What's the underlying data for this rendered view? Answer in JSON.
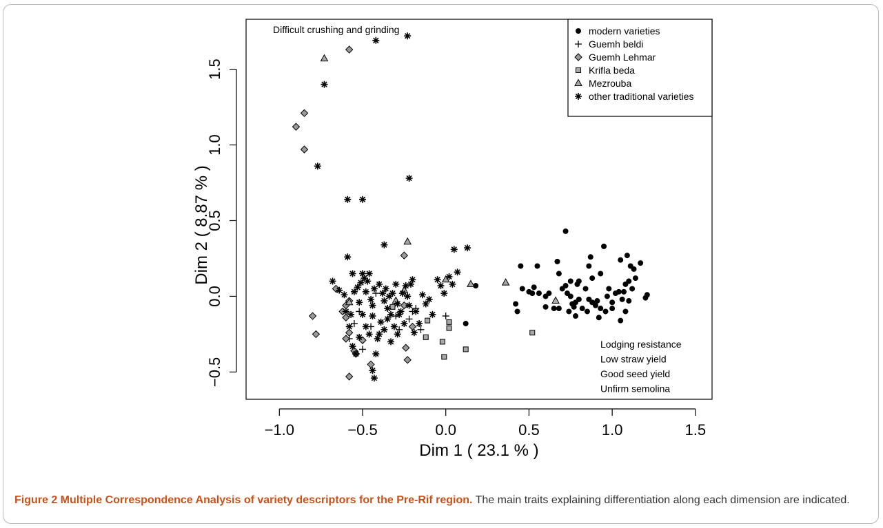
{
  "caption": {
    "label": "Figure 2 Multiple Correspondence Analysis of variety descriptors for the Pre-Rif region.",
    "text": "The main traits explaining differentiation along each dimension are indicated."
  },
  "chart_data": {
    "type": "scatter",
    "xlabel": "Dim 1  ( 23.1 % )",
    "ylabel": "Dim 2  ( 8.87 % )",
    "xlim": [
      -1.2,
      1.6
    ],
    "ylim": [
      -0.68,
      1.83
    ],
    "xticks": [
      -1.0,
      -0.5,
      0.0,
      0.5,
      1.0,
      1.5
    ],
    "yticks": [
      -0.5,
      0.0,
      0.5,
      1.0,
      1.5
    ],
    "xtick_labels": [
      "−1.0",
      "−0.5",
      "0.0",
      "0.5",
      "1.0",
      "1.5"
    ],
    "ytick_labels": [
      "−0.5",
      "0.0",
      "0.5",
      "1.0",
      "1.5"
    ],
    "grid": false,
    "legend_position": "top-right",
    "annotations": [
      {
        "lines": [
          "Difficult crushing and grinding"
        ],
        "position": "top-left"
      },
      {
        "lines": [
          "Lodging resistance",
          "Low straw yield",
          "Good seed yield",
          "Unfirm semolina"
        ],
        "position": "bottom-right"
      }
    ],
    "series": [
      {
        "name": "modern varieties",
        "marker": "filled-circle",
        "color": "#000000",
        "points": [
          [
            0.18,
            0.07
          ],
          [
            0.12,
            -0.18
          ],
          [
            0.42,
            -0.05
          ],
          [
            0.43,
            -0.1
          ],
          [
            0.45,
            0.2
          ],
          [
            0.46,
            0.05
          ],
          [
            0.5,
            0.03
          ],
          [
            0.52,
            0.02
          ],
          [
            0.53,
            0.06
          ],
          [
            0.55,
            0.2
          ],
          [
            0.56,
            0.02
          ],
          [
            0.6,
            0.0
          ],
          [
            0.62,
            0.02
          ],
          [
            0.6,
            -0.07
          ],
          [
            0.65,
            -0.08
          ],
          [
            0.67,
            0.23
          ],
          [
            0.68,
            0.15
          ],
          [
            0.68,
            -0.08
          ],
          [
            0.7,
            0.05
          ],
          [
            0.72,
            0.43
          ],
          [
            0.72,
            0.07
          ],
          [
            0.73,
            0.02
          ],
          [
            0.74,
            -0.1
          ],
          [
            0.75,
            0.0
          ],
          [
            0.76,
            -0.05
          ],
          [
            0.75,
            0.1
          ],
          [
            0.77,
            -0.07
          ],
          [
            0.78,
            -0.04
          ],
          [
            0.78,
            -0.13
          ],
          [
            0.79,
            0.08
          ],
          [
            0.8,
            0.1
          ],
          [
            0.8,
            -0.02
          ],
          [
            0.82,
            -0.08
          ],
          [
            0.84,
            0.05
          ],
          [
            0.85,
            -0.1
          ],
          [
            0.86,
            -0.02
          ],
          [
            0.86,
            0.2
          ],
          [
            0.87,
            0.26
          ],
          [
            0.88,
            0.12
          ],
          [
            0.88,
            -0.04
          ],
          [
            0.9,
            -0.06
          ],
          [
            0.91,
            -0.03
          ],
          [
            0.92,
            -0.14
          ],
          [
            0.93,
            0.15
          ],
          [
            0.93,
            -0.08
          ],
          [
            0.95,
            0.33
          ],
          [
            0.96,
            -0.1
          ],
          [
            0.97,
            0.0
          ],
          [
            0.98,
            0.05
          ],
          [
            1.0,
            -0.04
          ],
          [
            1.0,
            -0.08
          ],
          [
            1.02,
            0.02
          ],
          [
            1.04,
            0.03
          ],
          [
            1.05,
            0.24
          ],
          [
            1.05,
            -0.16
          ],
          [
            1.06,
            -0.02
          ],
          [
            1.07,
            0.03
          ],
          [
            1.08,
            -0.1
          ],
          [
            1.08,
            0.08
          ],
          [
            1.09,
            0.27
          ],
          [
            1.1,
            0.1
          ],
          [
            1.1,
            -0.03
          ],
          [
            1.11,
            0.2
          ],
          [
            1.12,
            0.05
          ],
          [
            1.13,
            0.18
          ],
          [
            1.14,
            0.12
          ],
          [
            1.17,
            0.22
          ],
          [
            1.2,
            -0.01
          ],
          [
            1.21,
            0.01
          ]
        ]
      },
      {
        "name": "Guemh beldi",
        "marker": "plus",
        "color": "#000000",
        "points": [
          [
            -0.55,
            -0.18
          ],
          [
            -0.5,
            -0.35
          ],
          [
            -0.52,
            -0.1
          ],
          [
            -0.45,
            -0.2
          ],
          [
            -0.3,
            -0.13
          ],
          [
            -0.28,
            -0.22
          ],
          [
            -0.22,
            -0.15
          ],
          [
            -0.2,
            -0.1
          ],
          [
            -0.15,
            -0.22
          ],
          [
            -0.18,
            -0.08
          ],
          [
            0.0,
            -0.13
          ],
          [
            -0.58,
            -0.28
          ],
          [
            -0.42,
            0.02
          ]
        ]
      },
      {
        "name": "Guemh Lehmar",
        "marker": "diamond",
        "color": "#000000",
        "points": [
          [
            -0.58,
            1.63
          ],
          [
            -0.85,
            1.21
          ],
          [
            -0.9,
            1.12
          ],
          [
            -0.85,
            0.97
          ],
          [
            -0.25,
            0.27
          ],
          [
            -0.6,
            -0.06
          ],
          [
            -0.62,
            -0.1
          ],
          [
            -0.58,
            -0.03
          ],
          [
            -0.6,
            -0.14
          ],
          [
            -0.58,
            -0.24
          ],
          [
            -0.6,
            -0.28
          ],
          [
            -0.55,
            -0.36
          ],
          [
            -0.54,
            -0.38
          ],
          [
            -0.5,
            -0.29
          ],
          [
            -0.45,
            -0.45
          ],
          [
            -0.58,
            -0.53
          ],
          [
            -0.8,
            -0.13
          ],
          [
            -0.78,
            -0.25
          ],
          [
            -0.66,
            0.05
          ],
          [
            -0.24,
            -0.34
          ],
          [
            -0.23,
            -0.42
          ],
          [
            -0.2,
            -0.2
          ],
          [
            -0.25,
            -0.06
          ]
        ]
      },
      {
        "name": "Krifla beda",
        "marker": "square",
        "color": "#000000",
        "points": [
          [
            0.02,
            -0.17
          ],
          [
            0.02,
            -0.21
          ],
          [
            -0.02,
            -0.3
          ],
          [
            -0.01,
            -0.4
          ],
          [
            0.12,
            -0.35
          ],
          [
            -0.12,
            -0.27
          ],
          [
            -0.11,
            -0.16
          ],
          [
            0.52,
            -0.24
          ],
          [
            -0.32,
            -0.07
          ]
        ]
      },
      {
        "name": "Mezrouba",
        "marker": "triangle",
        "color": "#000000",
        "points": [
          [
            -0.73,
            1.57
          ],
          [
            -0.23,
            0.36
          ],
          [
            0.0,
            0.11
          ],
          [
            0.15,
            0.08
          ],
          [
            0.36,
            0.09
          ],
          [
            0.66,
            -0.03
          ],
          [
            -0.3,
            -0.03
          ],
          [
            -0.58,
            -0.04
          ],
          [
            -0.25,
            0.04
          ]
        ]
      },
      {
        "name": "other traditional varieties",
        "marker": "asterisk",
        "color": "#000000",
        "points": [
          [
            -0.42,
            1.69
          ],
          [
            -0.23,
            1.72
          ],
          [
            -0.73,
            1.4
          ],
          [
            -0.77,
            0.86
          ],
          [
            -0.22,
            0.78
          ],
          [
            -0.59,
            0.64
          ],
          [
            -0.5,
            0.64
          ],
          [
            -0.37,
            0.34
          ],
          [
            -0.59,
            0.26
          ],
          [
            0.05,
            0.31
          ],
          [
            0.13,
            0.32
          ],
          [
            -0.68,
            0.1
          ],
          [
            -0.64,
            0.04
          ],
          [
            -0.61,
            0.01
          ],
          [
            -0.56,
            0.15
          ],
          [
            -0.55,
            0.03
          ],
          [
            -0.53,
            0.06
          ],
          [
            -0.51,
            0.09
          ],
          [
            -0.5,
            0.15
          ],
          [
            -0.49,
            0.12
          ],
          [
            -0.48,
            0.03
          ],
          [
            -0.47,
            0.1
          ],
          [
            -0.46,
            0.15
          ],
          [
            -0.45,
            -0.02
          ],
          [
            -0.44,
            -0.06
          ],
          [
            -0.43,
            0.05
          ],
          [
            -0.4,
            0.08
          ],
          [
            -0.38,
            0.02
          ],
          [
            -0.37,
            -0.03
          ],
          [
            -0.36,
            0.05
          ],
          [
            -0.35,
            -0.08
          ],
          [
            -0.34,
            0.0
          ],
          [
            -0.33,
            -0.12
          ],
          [
            -0.32,
            0.02
          ],
          [
            -0.3,
            0.08
          ],
          [
            -0.29,
            -0.05
          ],
          [
            -0.28,
            -0.12
          ],
          [
            -0.27,
            -0.1
          ],
          [
            -0.26,
            0.02
          ],
          [
            -0.25,
            -0.18
          ],
          [
            -0.24,
            0.07
          ],
          [
            -0.23,
            0.0
          ],
          [
            -0.22,
            -0.06
          ],
          [
            -0.21,
            0.08
          ],
          [
            -0.2,
            0.11
          ],
          [
            -0.19,
            -0.24
          ],
          [
            -0.18,
            -0.1
          ],
          [
            -0.16,
            -0.18
          ],
          [
            -0.14,
            0.01
          ],
          [
            -0.12,
            -0.05
          ],
          [
            -0.1,
            -0.02
          ],
          [
            -0.08,
            -0.12
          ],
          [
            -0.05,
            0.11
          ],
          [
            -0.03,
            0.07
          ],
          [
            -0.01,
            0.02
          ],
          [
            0.02,
            0.13
          ],
          [
            0.04,
            0.08
          ],
          [
            0.07,
            0.16
          ],
          [
            -0.52,
            -0.04
          ],
          [
            -0.5,
            -0.12
          ],
          [
            -0.48,
            -0.2
          ],
          [
            -0.46,
            -0.25
          ],
          [
            -0.44,
            -0.13
          ],
          [
            -0.41,
            -0.28
          ],
          [
            -0.39,
            -0.17
          ],
          [
            -0.37,
            -0.22
          ],
          [
            -0.35,
            -0.15
          ],
          [
            -0.33,
            -0.3
          ],
          [
            -0.31,
            -0.2
          ],
          [
            -0.29,
            -0.25
          ],
          [
            -0.6,
            -0.1
          ],
          [
            -0.58,
            -0.2
          ],
          [
            -0.56,
            -0.33
          ],
          [
            -0.54,
            -0.38
          ],
          [
            -0.52,
            -0.27
          ],
          [
            -0.44,
            -0.49
          ],
          [
            -0.43,
            -0.54
          ],
          [
            -0.42,
            -0.38
          ],
          [
            -0.4,
            -0.25
          ],
          [
            -0.57,
            -0.12
          ]
        ]
      }
    ]
  }
}
